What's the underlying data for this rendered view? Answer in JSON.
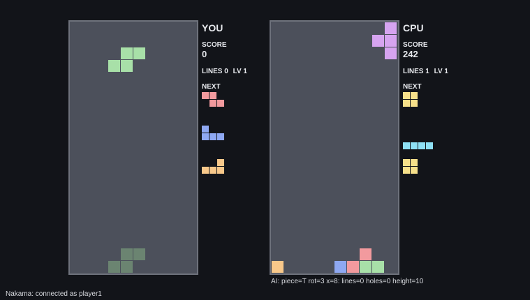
{
  "colors": {
    "background": "#121419",
    "board": "#4c505b",
    "board_border": "#6e727c",
    "S": "#a8e0a8",
    "Z": "#f29a9e",
    "J": "#8ea8f2",
    "L": "#f8c88a",
    "O": "#f6e08a",
    "I": "#8ee0f4",
    "T": "#d6a4f0",
    "ghost": "#6b8471"
  },
  "players": [
    {
      "id": "you",
      "name": "YOU",
      "score_label": "SCORE",
      "score": "0",
      "lines_text": "LINES 0",
      "level_text": "LV 1",
      "next_label": "NEXT",
      "active_piece": {
        "type": "S",
        "cells": [
          [
            4,
            2
          ],
          [
            5,
            2
          ],
          [
            3,
            3
          ],
          [
            4,
            3
          ]
        ]
      },
      "ghost_piece": {
        "type": "S",
        "cells": [
          [
            4,
            18
          ],
          [
            5,
            18
          ],
          [
            3,
            19
          ],
          [
            4,
            19
          ]
        ]
      },
      "locked": [],
      "next_queue": [
        {
          "type": "Z",
          "cells": [
            [
              0,
              0
            ],
            [
              1,
              0
            ],
            [
              1,
              1
            ],
            [
              2,
              1
            ]
          ]
        },
        {
          "type": "J",
          "cells": [
            [
              0,
              0
            ],
            [
              0,
              1
            ],
            [
              1,
              1
            ],
            [
              2,
              1
            ]
          ]
        },
        {
          "type": "L",
          "cells": [
            [
              2,
              0
            ],
            [
              0,
              1
            ],
            [
              1,
              1
            ],
            [
              2,
              1
            ]
          ]
        }
      ]
    },
    {
      "id": "cpu",
      "name": "CPU",
      "score_label": "SCORE",
      "score": "242",
      "lines_text": "LINES 1",
      "level_text": "LV 1",
      "next_label": "NEXT",
      "active_piece": {
        "type": "T",
        "cells": [
          [
            9,
            0
          ],
          [
            8,
            1
          ],
          [
            9,
            1
          ],
          [
            9,
            2
          ]
        ]
      },
      "ghost_piece": null,
      "locked": [
        {
          "type": "L",
          "x": 0,
          "y": 19
        },
        {
          "type": "Z",
          "x": 7,
          "y": 18
        },
        {
          "type": "J",
          "x": 5,
          "y": 19
        },
        {
          "type": "Z",
          "x": 6,
          "y": 19
        },
        {
          "type": "S",
          "x": 7,
          "y": 19
        },
        {
          "type": "S",
          "x": 8,
          "y": 19
        }
      ],
      "next_queue": [
        {
          "type": "O",
          "cells": [
            [
              0,
              0
            ],
            [
              1,
              0
            ],
            [
              0,
              1
            ],
            [
              1,
              1
            ]
          ]
        },
        {
          "type": "I",
          "cells": [
            [
              0,
              0
            ],
            [
              1,
              0
            ],
            [
              2,
              0
            ],
            [
              3,
              0
            ]
          ]
        },
        {
          "type": "O",
          "cells": [
            [
              0,
              0
            ],
            [
              1,
              0
            ],
            [
              0,
              1
            ],
            [
              1,
              1
            ]
          ]
        }
      ]
    }
  ],
  "status": {
    "connection": "Nakama: connected as player1",
    "ai_info": "AI: piece=T rot=3 x=8: lines=0 holes=0 height=10"
  }
}
